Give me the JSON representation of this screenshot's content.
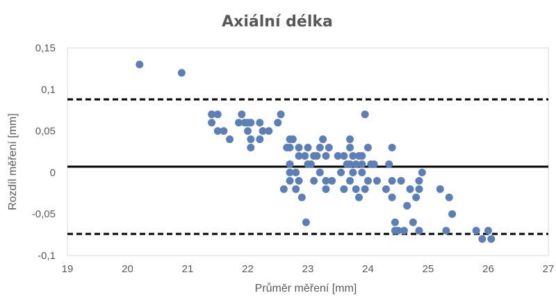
{
  "chart_data": {
    "type": "scatter",
    "title": "Axiální délka",
    "xlabel": "Průměr měření [mm]",
    "ylabel": "Rozdíl měření [mm]",
    "xlim": [
      19,
      27
    ],
    "ylim": [
      -0.1,
      0.15
    ],
    "xticks": [
      "19",
      "20",
      "21",
      "22",
      "23",
      "24",
      "25",
      "26",
      "27"
    ],
    "yticks": [
      "-0,1",
      "-0,05",
      "0",
      "0,05",
      "0,1",
      "0,15"
    ],
    "grid": false,
    "colors": {
      "points": "#5b7fb6",
      "lines": "#000000",
      "text": "#595959"
    },
    "reference_lines": [
      {
        "name": "mean",
        "y": 0.007,
        "style": "solid"
      },
      {
        "name": "upper-limit",
        "y": 0.088,
        "style": "dashed"
      },
      {
        "name": "lower-limit",
        "y": -0.074,
        "style": "dashed"
      }
    ],
    "series": [
      {
        "points": [
          [
            20.2,
            0.13
          ],
          [
            20.9,
            0.12
          ],
          [
            21.4,
            0.07
          ],
          [
            21.5,
            0.07
          ],
          [
            21.4,
            0.06
          ],
          [
            21.5,
            0.05
          ],
          [
            21.6,
            0.05
          ],
          [
            21.7,
            0.04
          ],
          [
            21.85,
            0.06
          ],
          [
            21.9,
            0.07
          ],
          [
            21.95,
            0.06
          ],
          [
            22.0,
            0.06
          ],
          [
            22.05,
            0.06
          ],
          [
            22.0,
            0.05
          ],
          [
            22.05,
            0.04
          ],
          [
            22.05,
            0.03
          ],
          [
            22.2,
            0.06
          ],
          [
            22.25,
            0.05
          ],
          [
            22.2,
            0.04
          ],
          [
            22.35,
            0.05
          ],
          [
            22.5,
            0.06
          ],
          [
            22.55,
            0.07
          ],
          [
            22.6,
            -0.02
          ],
          [
            22.65,
            0.03
          ],
          [
            22.7,
            0.04
          ],
          [
            22.75,
            0.04
          ],
          [
            22.7,
            0.03
          ],
          [
            22.7,
            0.01
          ],
          [
            22.7,
            0.0
          ],
          [
            22.7,
            -0.01
          ],
          [
            22.8,
            0.0
          ],
          [
            22.8,
            -0.02
          ],
          [
            22.85,
            0.02
          ],
          [
            22.85,
            0.03
          ],
          [
            22.85,
            -0.01
          ],
          [
            22.9,
            -0.03
          ],
          [
            22.95,
            0.02
          ],
          [
            23.0,
            0.03
          ],
          [
            23.0,
            0.01
          ],
          [
            23.05,
            0.01
          ],
          [
            23.1,
            0.02
          ],
          [
            22.97,
            -0.06
          ],
          [
            23.1,
            -0.01
          ],
          [
            23.15,
            0.02
          ],
          [
            23.2,
            0.03
          ],
          [
            23.25,
            0.04
          ],
          [
            23.2,
            0.0
          ],
          [
            23.3,
            0.02
          ],
          [
            23.3,
            -0.02
          ],
          [
            23.35,
            0.03
          ],
          [
            23.4,
            -0.01
          ],
          [
            23.3,
            -0.01
          ],
          [
            23.5,
            0.02
          ],
          [
            23.6,
            0.02
          ],
          [
            23.55,
            0.0
          ],
          [
            23.65,
            0.01
          ],
          [
            23.6,
            -0.02
          ],
          [
            23.7,
            0.04
          ],
          [
            23.7,
            0.03
          ],
          [
            23.75,
            0.02
          ],
          [
            23.7,
            0.01
          ],
          [
            23.75,
            0.0
          ],
          [
            23.7,
            -0.01
          ],
          [
            23.8,
            -0.02
          ],
          [
            23.8,
            0.01
          ],
          [
            23.85,
            0.02
          ],
          [
            23.9,
            0.02
          ],
          [
            23.9,
            0.01
          ],
          [
            23.9,
            0.0
          ],
          [
            23.85,
            -0.03
          ],
          [
            23.95,
            -0.02
          ],
          [
            23.95,
            0.07
          ],
          [
            24.0,
            0.03
          ],
          [
            24.0,
            -0.01
          ],
          [
            24.05,
            0.01
          ],
          [
            24.1,
            0.01
          ],
          [
            24.15,
            -0.01
          ],
          [
            24.3,
            -0.02
          ],
          [
            24.35,
            0.01
          ],
          [
            24.4,
            0.03
          ],
          [
            24.4,
            -0.01
          ],
          [
            24.4,
            -0.03
          ],
          [
            24.45,
            -0.06
          ],
          [
            24.45,
            -0.07
          ],
          [
            24.5,
            -0.07
          ],
          [
            24.55,
            -0.01
          ],
          [
            24.6,
            -0.07
          ],
          [
            24.65,
            -0.04
          ],
          [
            24.7,
            -0.02
          ],
          [
            24.75,
            -0.06
          ],
          [
            24.8,
            -0.03
          ],
          [
            24.85,
            -0.01
          ],
          [
            24.85,
            -0.07
          ],
          [
            24.9,
            0.0
          ],
          [
            24.85,
            -0.02
          ],
          [
            25.2,
            -0.02
          ],
          [
            25.3,
            -0.07
          ],
          [
            25.35,
            -0.03
          ],
          [
            25.4,
            -0.05
          ],
          [
            25.8,
            -0.07
          ],
          [
            25.9,
            -0.08
          ],
          [
            26.0,
            -0.07
          ],
          [
            26.05,
            -0.08
          ]
        ]
      }
    ]
  }
}
